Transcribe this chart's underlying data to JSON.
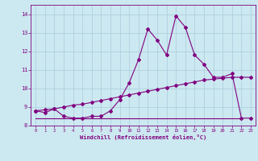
{
  "xlabel": "Windchill (Refroidissement éolien,°C)",
  "x_hours": [
    0,
    1,
    2,
    3,
    4,
    5,
    6,
    7,
    8,
    9,
    10,
    11,
    12,
    13,
    14,
    15,
    16,
    17,
    18,
    19,
    20,
    21,
    22,
    23
  ],
  "temp_line": [
    8.8,
    8.7,
    8.9,
    8.5,
    8.4,
    8.4,
    8.5,
    8.5,
    8.8,
    9.4,
    10.3,
    11.55,
    13.2,
    12.6,
    11.8,
    13.9,
    13.3,
    11.8,
    11.3,
    10.6,
    10.6,
    10.8,
    8.4,
    8.4
  ],
  "flat_line": [
    8.4,
    8.4,
    8.4,
    8.4,
    8.4,
    8.4,
    8.4,
    8.4,
    8.4,
    8.4,
    8.4,
    8.4,
    8.4,
    8.4,
    8.4,
    8.4,
    8.4,
    8.4,
    8.4,
    8.4,
    8.4,
    8.4,
    8.4
  ],
  "linear_line": [
    8.8,
    8.85,
    8.9,
    9.0,
    9.1,
    9.15,
    9.25,
    9.35,
    9.45,
    9.55,
    9.65,
    9.75,
    9.85,
    9.95,
    10.05,
    10.15,
    10.25,
    10.35,
    10.45,
    10.5,
    10.55,
    10.6,
    10.6,
    10.6
  ],
  "flat_x": [
    0,
    1,
    2,
    3,
    4,
    5,
    6,
    7,
    8,
    9,
    10,
    11,
    12,
    13,
    14,
    15,
    16,
    17,
    18,
    19,
    20,
    21,
    22
  ],
  "line_color": "#800080",
  "bg_color": "#cce8f0",
  "grid_color": "#aaccdd",
  "ylim": [
    8.0,
    14.5
  ],
  "xlim_min": -0.5,
  "xlim_max": 23.5,
  "yticks": [
    8,
    9,
    10,
    11,
    12,
    13,
    14
  ],
  "xticks": [
    0,
    1,
    2,
    3,
    4,
    5,
    6,
    7,
    8,
    9,
    10,
    11,
    12,
    13,
    14,
    15,
    16,
    17,
    18,
    19,
    20,
    21,
    22,
    23
  ]
}
